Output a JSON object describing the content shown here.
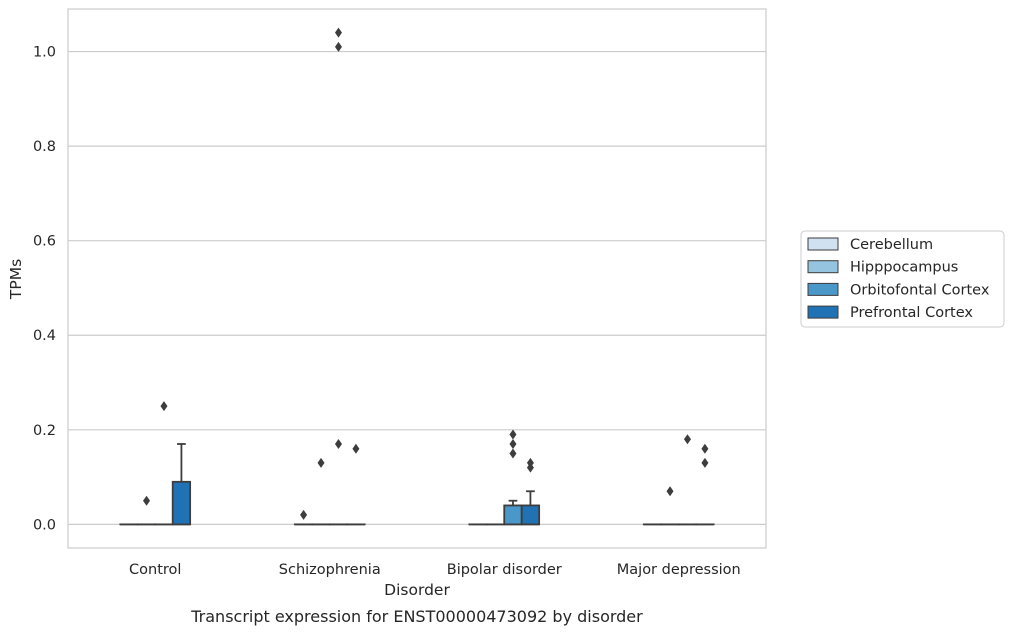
{
  "chart_data": {
    "type": "box",
    "title": "",
    "caption": "Transcript expression for ENST00000473092 by disorder",
    "xlabel": "Disorder",
    "ylabel": "TPMs",
    "ylim": [
      -0.05,
      1.09
    ],
    "yticks": [
      0.0,
      0.2,
      0.4,
      0.6,
      0.8,
      1.0
    ],
    "ytick_labels": [
      "0.0",
      "0.2",
      "0.4",
      "0.6",
      "0.8",
      "1.0"
    ],
    "grid": "horizontal",
    "legend_position": "right",
    "categories": [
      "Control",
      "Schizophrenia",
      "Bipolar disorder",
      "Major depression"
    ],
    "series": [
      {
        "name": "Cerebellum",
        "color": "#d0e1f2",
        "boxes": [
          {
            "q1": 0,
            "median": 0,
            "q3": 0,
            "whislo": 0,
            "whishi": 0,
            "outliers": []
          },
          {
            "q1": 0,
            "median": 0,
            "q3": 0,
            "whislo": 0,
            "whishi": 0,
            "outliers": [
              0.02
            ]
          },
          {
            "q1": 0,
            "median": 0,
            "q3": 0,
            "whislo": 0,
            "whishi": 0,
            "outliers": []
          },
          {
            "q1": 0,
            "median": 0,
            "q3": 0,
            "whislo": 0,
            "whishi": 0,
            "outliers": []
          }
        ]
      },
      {
        "name": "Hipppocampus",
        "color": "#94c4df",
        "boxes": [
          {
            "q1": 0,
            "median": 0,
            "q3": 0,
            "whislo": 0,
            "whishi": 0,
            "outliers": [
              0.05
            ]
          },
          {
            "q1": 0,
            "median": 0,
            "q3": 0,
            "whislo": 0,
            "whishi": 0,
            "outliers": [
              0.13
            ]
          },
          {
            "q1": 0,
            "median": 0,
            "q3": 0,
            "whislo": 0,
            "whishi": 0,
            "outliers": []
          },
          {
            "q1": 0,
            "median": 0,
            "q3": 0,
            "whislo": 0,
            "whishi": 0,
            "outliers": [
              0.07
            ]
          }
        ]
      },
      {
        "name": "Orbitofontal Cortex",
        "color": "#4a98c9",
        "boxes": [
          {
            "q1": 0,
            "median": 0,
            "q3": 0,
            "whislo": 0,
            "whishi": 0,
            "outliers": [
              0.25
            ]
          },
          {
            "q1": 0,
            "median": 0,
            "q3": 0,
            "whislo": 0,
            "whishi": 0,
            "outliers": [
              0.17,
              1.01,
              1.04
            ]
          },
          {
            "q1": 0,
            "median": 0,
            "q3": 0.04,
            "whislo": 0,
            "whishi": 0.05,
            "outliers": [
              0.15,
              0.17,
              0.19
            ]
          },
          {
            "q1": 0,
            "median": 0,
            "q3": 0,
            "whislo": 0,
            "whishi": 0,
            "outliers": [
              0.18
            ]
          }
        ]
      },
      {
        "name": "Prefrontal Cortex",
        "color": "#2171b5",
        "boxes": [
          {
            "q1": 0,
            "median": 0,
            "q3": 0.09,
            "whislo": 0,
            "whishi": 0.17,
            "outliers": []
          },
          {
            "q1": 0,
            "median": 0,
            "q3": 0,
            "whislo": 0,
            "whishi": 0,
            "outliers": [
              0.16
            ]
          },
          {
            "q1": 0,
            "median": 0,
            "q3": 0.04,
            "whislo": 0,
            "whishi": 0.07,
            "outliers": [
              0.12,
              0.13
            ]
          },
          {
            "q1": 0,
            "median": 0,
            "q3": 0,
            "whislo": 0,
            "whishi": 0,
            "outliers": [
              0.13,
              0.16
            ]
          }
        ]
      }
    ]
  },
  "style": {
    "grid_color": "#cccccc",
    "frame_color": "#cccccc",
    "line_color": "#3d3d3d",
    "outlier_color": "#3d3d3d",
    "legend_border_color": "#cccccc"
  }
}
